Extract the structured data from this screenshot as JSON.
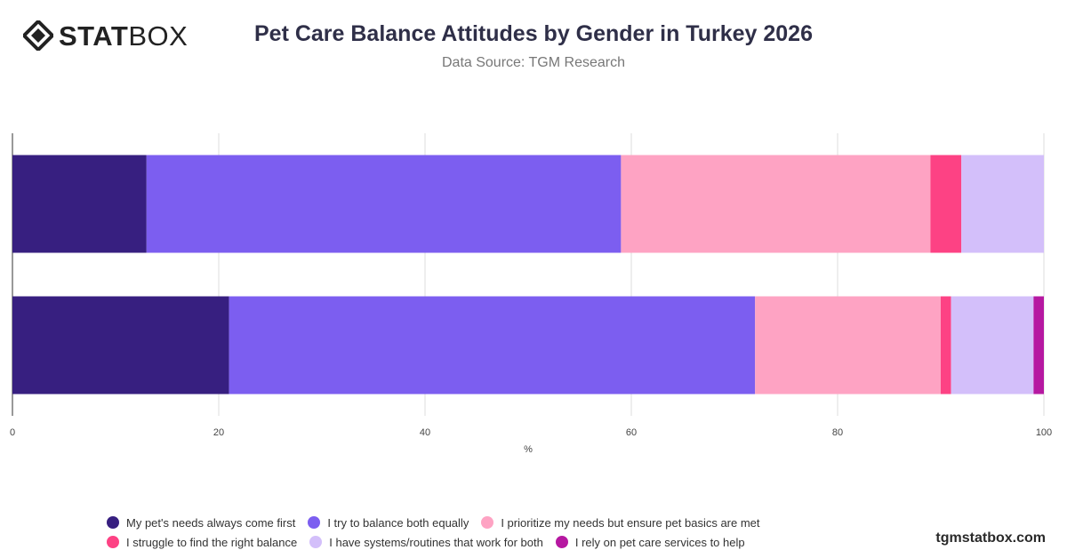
{
  "brand": {
    "logo_bold": "STAT",
    "logo_light": "BOX"
  },
  "footer": {
    "site": "tgmstatbox.com"
  },
  "chart_data": {
    "type": "bar",
    "orientation": "horizontal",
    "stacked": true,
    "title": "Pet Care Balance Attitudes by Gender in Turkey 2026",
    "subtitle": "Data Source: TGM Research",
    "xlabel": "%",
    "ylabel": "",
    "xlim": [
      0,
      100
    ],
    "xticks": [
      0,
      20,
      40,
      60,
      80,
      100
    ],
    "grid": true,
    "legend_position": "bottom",
    "categories": [
      "",
      ""
    ],
    "series": [
      {
        "name": "My pet's needs always come first",
        "color": "#371f80",
        "values": [
          13,
          21
        ]
      },
      {
        "name": "I try to balance both equally",
        "color": "#7c5ef0",
        "values": [
          46,
          51
        ]
      },
      {
        "name": "I prioritize my needs but ensure pet basics are met",
        "color": "#fea3c3",
        "values": [
          30,
          18
        ]
      },
      {
        "name": "I struggle to find the right balance",
        "color": "#fd4284",
        "values": [
          3,
          1
        ]
      },
      {
        "name": "I have systems/routines that work for both",
        "color": "#d3bffa",
        "values": [
          8,
          8
        ]
      },
      {
        "name": "I rely on pet care services to help",
        "color": "#b618a1",
        "values": [
          0,
          1
        ]
      }
    ]
  }
}
